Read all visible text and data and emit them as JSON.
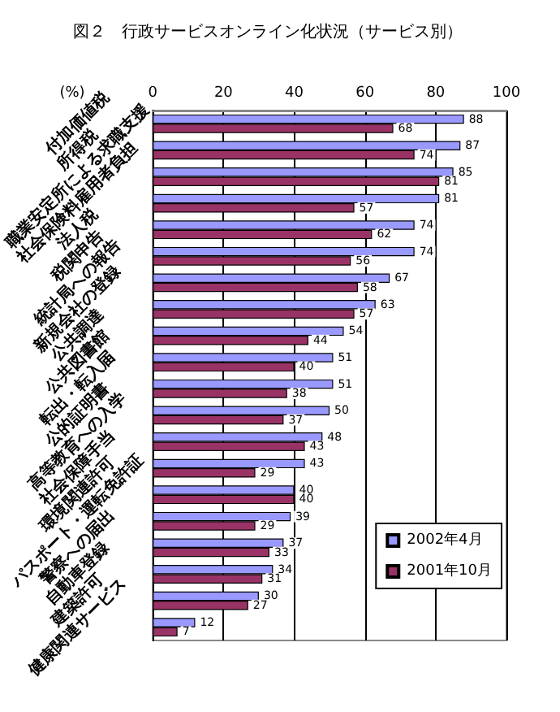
{
  "chart_data": {
    "type": "bar",
    "orientation": "horizontal",
    "title": "図２　行政サービスオンライン化状況（サービス別）",
    "xlabel": "(%)",
    "categories": [
      "付加価値税",
      "所得税",
      "職業安定所による求職支援",
      "社会保険料雇用者負担",
      "法人税",
      "税関申告",
      "統計局への報告",
      "新規会社の登録",
      "公共調達",
      "公共図書館",
      "転出・転入届",
      "公的証明書",
      "高等教育への入学",
      "社会保障手当",
      "環境関連許可",
      "パスポート・運転免許証",
      "警察への届出",
      "自動車登録",
      "建築許可",
      "健康関連サービス"
    ],
    "series": [
      {
        "name": "2002年4月",
        "color": "#9999ff",
        "values": [
          88,
          87,
          85,
          81,
          74,
          74,
          67,
          63,
          54,
          51,
          51,
          50,
          48,
          43,
          40,
          39,
          37,
          34,
          30,
          12
        ]
      },
      {
        "name": "2001年10月",
        "color": "#993366",
        "values": [
          68,
          74,
          81,
          57,
          62,
          56,
          58,
          57,
          44,
          40,
          38,
          37,
          43,
          29,
          40,
          29,
          33,
          31,
          27,
          7
        ]
      }
    ],
    "xlim": [
      0,
      100
    ],
    "xticks": [
      0,
      20,
      40,
      60,
      80,
      100
    ],
    "grid": "x",
    "legend": "bottom right",
    "data_labels": true
  }
}
